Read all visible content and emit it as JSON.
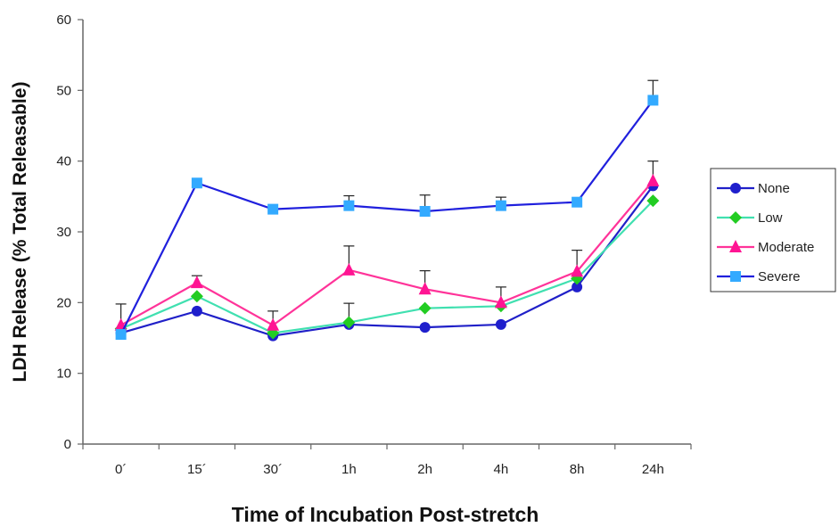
{
  "chart_data": {
    "type": "line",
    "title": "",
    "xlabel": "Time of Incubation Post-stretch",
    "ylabel": "LDH Release (% Total Releasable)",
    "categories": [
      "0´",
      "15´",
      "30´",
      "1h",
      "2h",
      "4h",
      "8h",
      "24h"
    ],
    "ylim": [
      0,
      60
    ],
    "yticks": [
      0,
      10,
      20,
      30,
      40,
      50,
      60
    ],
    "grid": false,
    "legend_position": "right",
    "series": [
      {
        "name": "None",
        "color": "#1f1fcc",
        "marker": "circle",
        "line_color": "#2020c8",
        "values": [
          15.7,
          18.8,
          15.3,
          16.9,
          16.5,
          16.9,
          22.2,
          36.5
        ],
        "error": [
          0,
          0,
          0,
          0,
          0,
          0,
          0,
          0
        ]
      },
      {
        "name": "Low",
        "color": "#22cc22",
        "marker": "diamond",
        "line_color": "#40e0b0",
        "values": [
          16.3,
          20.9,
          15.7,
          17.2,
          19.2,
          19.5,
          23.4,
          34.4
        ],
        "error": [
          0,
          0,
          0,
          2.7,
          0,
          0,
          0,
          0
        ]
      },
      {
        "name": "Moderate",
        "color": "#ff1493",
        "marker": "triangle",
        "line_color": "#ff3399",
        "values": [
          16.8,
          22.8,
          16.8,
          24.6,
          21.9,
          20.0,
          24.4,
          37.2
        ],
        "error": [
          3.0,
          1.0,
          2.0,
          3.4,
          2.6,
          2.2,
          3.0,
          2.8
        ]
      },
      {
        "name": "Severe",
        "color": "#33aaff",
        "marker": "square",
        "line_color": "#2020dd",
        "values": [
          15.5,
          36.9,
          33.2,
          33.7,
          32.9,
          33.7,
          34.2,
          48.6
        ],
        "error": [
          0,
          0,
          0,
          1.4,
          2.3,
          1.2,
          0,
          2.8
        ]
      }
    ]
  }
}
